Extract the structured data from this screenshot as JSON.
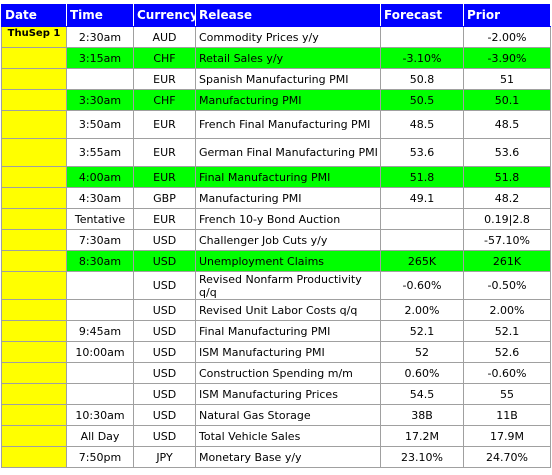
{
  "headers": {
    "date": "Date",
    "time": "Time",
    "currency": "Currency",
    "release": "Release",
    "forecast": "Forecast",
    "prior": "Prior"
  },
  "rows": [
    {
      "date": "ThuSep 1",
      "time": "2:30am",
      "currency": "AUD",
      "release": "Commodity Prices y/y",
      "forecast": "",
      "prior": "-2.00%",
      "highlight": false,
      "tall": false
    },
    {
      "date": "",
      "time": "3:15am",
      "currency": "CHF",
      "release": "Retail Sales y/y",
      "forecast": "-3.10%",
      "prior": "-3.90%",
      "highlight": true,
      "tall": false
    },
    {
      "date": "",
      "time": "",
      "currency": "EUR",
      "release": "Spanish Manufacturing PMI",
      "forecast": "50.8",
      "prior": "51",
      "highlight": false,
      "tall": false
    },
    {
      "date": "",
      "time": "3:30am",
      "currency": "CHF",
      "release": "Manufacturing PMI",
      "forecast": "50.5",
      "prior": "50.1",
      "highlight": true,
      "tall": false
    },
    {
      "date": "",
      "time": "3:50am",
      "currency": "EUR",
      "release": "French Final Manufacturing PMI",
      "forecast": "48.5",
      "prior": "48.5",
      "highlight": false,
      "tall": true
    },
    {
      "date": "",
      "time": "3:55am",
      "currency": "EUR",
      "release": "German Final Manufacturing PMI",
      "forecast": "53.6",
      "prior": "53.6",
      "highlight": false,
      "tall": true
    },
    {
      "date": "",
      "time": "4:00am",
      "currency": "EUR",
      "release": "Final Manufacturing PMI",
      "forecast": "51.8",
      "prior": "51.8",
      "highlight": true,
      "tall": false
    },
    {
      "date": "",
      "time": "4:30am",
      "currency": "GBP",
      "release": "Manufacturing PMI",
      "forecast": "49.1",
      "prior": "48.2",
      "highlight": false,
      "tall": false
    },
    {
      "date": "",
      "time": "Tentative",
      "currency": "EUR",
      "release": "French 10-y Bond Auction",
      "forecast": "",
      "prior": "0.19|2.8",
      "highlight": false,
      "tall": false
    },
    {
      "date": "",
      "time": "7:30am",
      "currency": "USD",
      "release": "Challenger Job Cuts y/y",
      "forecast": "",
      "prior": "-57.10%",
      "highlight": false,
      "tall": false
    },
    {
      "date": "",
      "time": "8:30am",
      "currency": "USD",
      "release": "Unemployment Claims",
      "forecast": "265K",
      "prior": "261K",
      "highlight": true,
      "tall": false
    },
    {
      "date": "",
      "time": "",
      "currency": "USD",
      "release": "Revised Nonfarm Productivity q/q",
      "forecast": "-0.60%",
      "prior": "-0.50%",
      "highlight": false,
      "tall": true
    },
    {
      "date": "",
      "time": "",
      "currency": "USD",
      "release": "Revised Unit Labor Costs q/q",
      "forecast": "2.00%",
      "prior": "2.00%",
      "highlight": false,
      "tall": false
    },
    {
      "date": "",
      "time": "9:45am",
      "currency": "USD",
      "release": "Final Manufacturing PMI",
      "forecast": "52.1",
      "prior": "52.1",
      "highlight": false,
      "tall": false
    },
    {
      "date": "",
      "time": "10:00am",
      "currency": "USD",
      "release": "ISM Manufacturing PMI",
      "forecast": "52",
      "prior": "52.6",
      "highlight": false,
      "tall": false
    },
    {
      "date": "",
      "time": "",
      "currency": "USD",
      "release": "Construction Spending m/m",
      "forecast": "0.60%",
      "prior": "-0.60%",
      "highlight": false,
      "tall": false
    },
    {
      "date": "",
      "time": "",
      "currency": "USD",
      "release": "ISM Manufacturing Prices",
      "forecast": "54.5",
      "prior": "55",
      "highlight": false,
      "tall": false
    },
    {
      "date": "",
      "time": "10:30am",
      "currency": "USD",
      "release": "Natural Gas Storage",
      "forecast": "38B",
      "prior": "11B",
      "highlight": false,
      "tall": false
    },
    {
      "date": "",
      "time": "All Day",
      "currency": "USD",
      "release": "Total Vehicle Sales",
      "forecast": "17.2M",
      "prior": "17.9M",
      "highlight": false,
      "tall": false
    },
    {
      "date": "",
      "time": "7:50pm",
      "currency": "JPY",
      "release": "Monetary Base y/y",
      "forecast": "23.10%",
      "prior": "24.70%",
      "highlight": false,
      "tall": false
    }
  ],
  "colors": {
    "header_bg": "#0000ff",
    "header_text": "#ffffff",
    "date_bg": "#ffff00",
    "highlight_bg": "#00ff00"
  }
}
